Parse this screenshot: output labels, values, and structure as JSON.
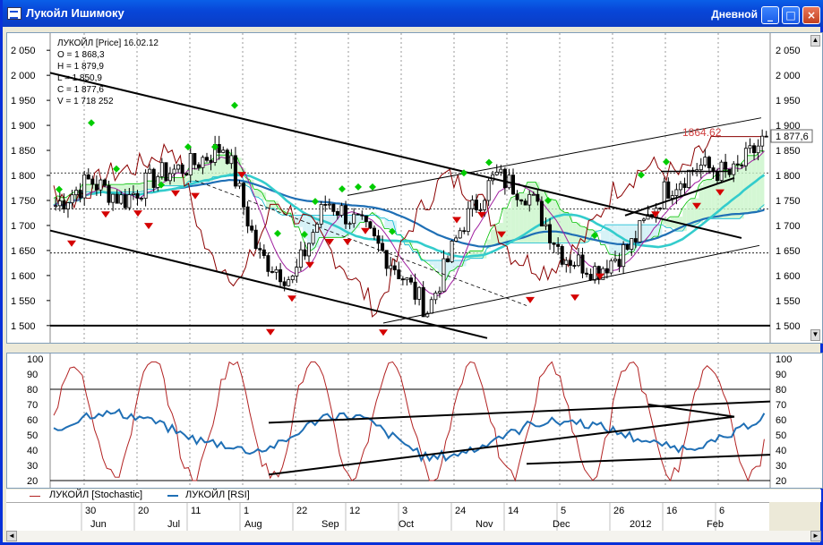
{
  "window": {
    "title": "Лукойл Ишимоку",
    "period": "Дневной",
    "minimize": "_",
    "maximize": "□",
    "close": "×"
  },
  "ohlc": {
    "header": "ЛУКОЙЛ [Price] 16.02.12",
    "open": "O = 1 868,3",
    "high": "H = 1 879,9",
    "low": "L = 1 850,9",
    "close": "C = 1 877,6",
    "volume": "V = 1 718 252"
  },
  "price_panel": {
    "y_ticks": [
      "2 050",
      "2 000",
      "1 950",
      "1 900",
      "1 850",
      "1 800",
      "1 750",
      "1 700",
      "1 650",
      "1 600",
      "1 550",
      "1 500"
    ],
    "current_price": "1 877,6",
    "annotation": "1864.62",
    "colors": {
      "candles": "#000000",
      "ichimoku_cloud": "#00c000",
      "cloud_b": "#00b7d0",
      "ma_slow": "#1f6fb5",
      "ma_fast": "#33cccc",
      "lagging": "#8b0000",
      "signal_up": "#00cc00",
      "signal_down": "#d40000",
      "annotation": "#d04040"
    }
  },
  "osc_panel": {
    "y_ticks": [
      "100",
      "90",
      "80",
      "70",
      "60",
      "50",
      "40",
      "30",
      "20"
    ],
    "legend_stochastic": "ЛУКОЙЛ [Stochastic]",
    "legend_rsi": "ЛУКОЙЛ [RSI]",
    "colors": {
      "stochastic": "#b22222",
      "rsi": "#1f6fb5"
    }
  },
  "time_axis": {
    "days": [
      "30",
      "20",
      "11",
      "1",
      "22",
      "12",
      "3",
      "24",
      "14",
      "5",
      "26",
      "16",
      "6"
    ],
    "months": [
      "Jun",
      "Jul",
      "Aug",
      "Sep",
      "Oct",
      "Nov",
      "Dec",
      "2012",
      "Feb"
    ]
  },
  "chart_data": {
    "type": "candlestick",
    "title": "ЛУКОЙЛ [Price] 16.02.12",
    "ylim": [
      1480,
      2070
    ],
    "x": [
      "30 May",
      "Jun",
      "20 Jun",
      "Jul",
      "11 Jul",
      "1 Aug",
      "Aug",
      "22 Aug",
      "Sep",
      "12 Sep",
      "3 Oct",
      "Oct",
      "24 Oct",
      "Nov",
      "14 Nov",
      "5 Dec",
      "Dec",
      "26 Dec",
      "2012",
      "16 Jan",
      "6 Feb",
      "16 Feb"
    ],
    "close": [
      1740,
      1790,
      1750,
      1800,
      1820,
      1860,
      1640,
      1590,
      1750,
      1700,
      1620,
      1530,
      1700,
      1800,
      1760,
      1640,
      1610,
      1660,
      1770,
      1820,
      1800,
      1877.6
    ],
    "horizontal_levels": [
      1805,
      1733,
      1645,
      1500
    ],
    "oscillator_ylim": [
      20,
      100
    ],
    "oscillator_levels": [
      80,
      20
    ]
  }
}
